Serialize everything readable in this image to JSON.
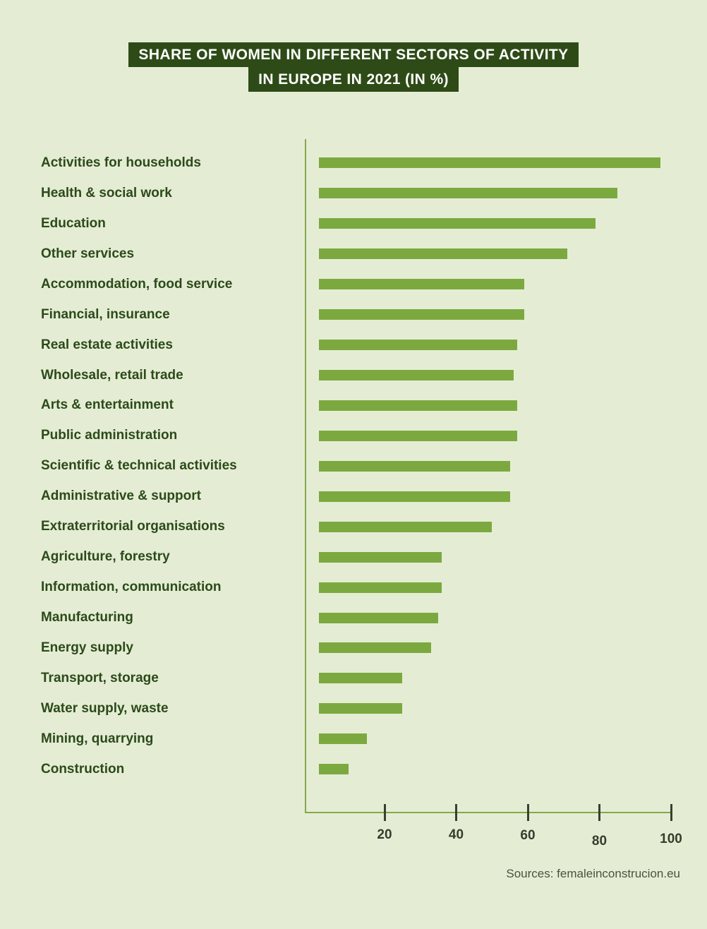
{
  "title": {
    "line1": "SHARE OF WOMEN IN DIFFERENT SECTORS OF ACTIVITY",
    "line2": "IN EUROPE IN 2021 (IN %)"
  },
  "source": "Sources: femaleinconstrucion.eu",
  "colors": {
    "background": "#e4edd4",
    "bar": "#7ca93f",
    "axis_line": "#86a84c",
    "tick_mark": "#39402f",
    "title_background": "#2e4b17",
    "title_text": "#ffffff",
    "label_text": "#2c4a1a",
    "tick_text": "#343d2c",
    "source_text": "#49523e"
  },
  "chart_data": {
    "type": "bar",
    "orientation": "horizontal",
    "title": "Share of women in different sectors of activity in Europe in 2021 (in %)",
    "categories": [
      "Activities for households",
      "Health & social work",
      "Education",
      "Other services",
      "Accommodation, food service",
      "Financial, insurance",
      "Real estate activities",
      "Wholesale, retail trade",
      "Arts & entertainment",
      "Public administration",
      "Scientific & technical activities",
      "Administrative & support",
      "Extraterritorial organisations",
      "Agriculture, forestry",
      "Information, communication",
      "Manufacturing",
      "Energy supply",
      "Transport, storage",
      "Water supply, waste",
      "Mining, quarrying",
      "Construction"
    ],
    "values": [
      97,
      85,
      79,
      71,
      59,
      59,
      57,
      56,
      57,
      57,
      55,
      55,
      50,
      36,
      36,
      35,
      33,
      25,
      25,
      15,
      10
    ],
    "xlabel": "",
    "ylabel": "",
    "xlim": [
      0,
      100
    ],
    "xticks": [
      20,
      40,
      60,
      80,
      100
    ],
    "unit": "%",
    "grid": false,
    "legend": false
  }
}
